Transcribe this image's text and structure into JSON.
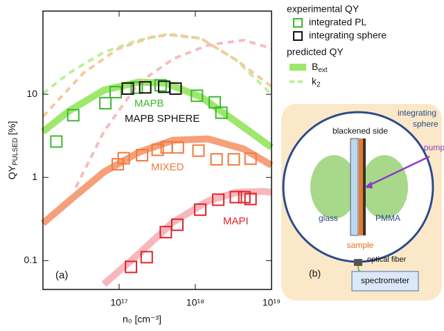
{
  "chart_data": {
    "type": "scatter",
    "log_x": true,
    "log_y": true,
    "x_label": "n₀ [cm⁻³]",
    "y_label": "QY",
    "y_label_sub": "PULSED",
    "y_label_unit": "[%]",
    "xlim": [
      1e+16,
      1e+19
    ],
    "ylim": [
      0.045,
      100
    ],
    "xticks": [
      {
        "value": 1e+17,
        "label": "10¹⁷"
      },
      {
        "value": 1e+18,
        "label": "10¹⁸"
      },
      {
        "value": 1e+19,
        "label": "10¹⁹"
      }
    ],
    "yticks": [
      0.1,
      1,
      10
    ],
    "legend_titles": [
      "experimental QY",
      "predicted QY"
    ],
    "series": [
      {
        "name": "integrated PL",
        "color": "#3cb82c",
        "x": [
          1.5e+16,
          2.5e+16,
          6.6e+16,
          9e+16,
          1.3e+17,
          1.7e+17,
          3.5e+17,
          1.05e+18,
          1.8e+18,
          2.2e+18
        ],
        "values": [
          2.7,
          5.6,
          7.8,
          10.6,
          11.7,
          12,
          12.8,
          9.6,
          8,
          6
        ]
      },
      {
        "name": "integrating sphere",
        "color": "#111111",
        "x": [
          1.3e+17,
          2.2e+17,
          3.9e+17,
          5.5e+17
        ],
        "values": [
          11.7,
          12.1,
          12.3,
          11.7
        ]
      },
      {
        "color": "#f07a3c",
        "x": [
          9.6e+16,
          1.15e+17,
          2e+17,
          3.2e+17,
          4.2e+17,
          5.9e+17,
          1.1e+18,
          1.9e+18,
          3.2e+18,
          5.3e+18
        ],
        "values": [
          1.44,
          1.7,
          1.85,
          2.15,
          2.3,
          2.3,
          2.1,
          1.65,
          1.65,
          1.68
        ]
      },
      {
        "color": "#e0202a",
        "x": [
          1.43e+17,
          2.3e+17,
          4.1e+17,
          5.8e+17,
          1.16e+18,
          2e+18,
          3.4e+18,
          4.4e+18,
          5.3e+18
        ],
        "values": [
          0.084,
          0.11,
          0.22,
          0.27,
          0.41,
          0.54,
          0.58,
          0.58,
          0.55
        ]
      }
    ],
    "curves": [
      {
        "name": "B",
        "name_sub": "ext",
        "style": "solid",
        "color": "#9de86c",
        "x": [
          1e+16,
          2.2e+16,
          6.3e+16,
          1.8e+17,
          4.1e+17,
          1.18e+18,
          3.4e+18,
          1e+19
        ],
        "values": [
          3.55,
          6.3,
          11.2,
          14,
          13.6,
          9.3,
          4.7,
          2.3
        ]
      },
      {
        "style": "solid",
        "color": "#f5a07a",
        "x": [
          1e+16,
          2.2e+16,
          6.3e+16,
          1.8e+17,
          5.1e+17,
          1.47e+18,
          4.3e+18,
          1e+19
        ],
        "values": [
          0.28,
          0.52,
          1.16,
          2,
          2.8,
          2.9,
          2.2,
          1.4
        ]
      },
      {
        "style": "solid",
        "color": "#f6b8bc",
        "x": [
          6.3e+16,
          1.8e+17,
          5.1e+17,
          1.47e+18,
          3.4e+18,
          7.9e+18,
          1e+19
        ],
        "values": [
          0.052,
          0.12,
          0.29,
          0.52,
          0.66,
          0.68,
          0.66
        ]
      },
      {
        "name": "k",
        "name_sub": "2",
        "style": "dashed",
        "color": "#bdf09a",
        "x": [
          1e+16,
          2.2e+16,
          6.3e+16,
          1.8e+17,
          4.1e+17,
          1.18e+18,
          3.4e+18,
          1e+19
        ],
        "values": [
          10.2,
          18,
          32,
          44.7,
          52,
          47,
          26,
          10
        ]
      },
      {
        "style": "dashed",
        "color": "#f7c89c",
        "x": [
          1e+16,
          3.4e+16,
          9.6e+16,
          2.7e+17,
          5.1e+17,
          1.18e+18,
          3.4e+18,
          1e+19
        ],
        "values": [
          5.4,
          18,
          35,
          49,
          52,
          47,
          26,
          12.4
        ]
      },
      {
        "style": "dashed",
        "color": "#f6bcbc",
        "x": [
          2.7e+16,
          6.3e+16,
          1.8e+17,
          5.1e+17,
          1.47e+18,
          4.3e+18,
          1e+19
        ],
        "values": [
          0.76,
          3.55,
          13.6,
          26.6,
          39,
          44.7,
          35.5
        ]
      }
    ],
    "annotations": [
      "MAPB",
      "MAPB SPHERE",
      "MIXED",
      "MAPI",
      "(a)"
    ]
  },
  "diagram": {
    "sphere_label_1": "integrating",
    "sphere_label_2": "sphere",
    "blackened": "blackened side",
    "pump": "pump",
    "glass": "glass",
    "sample": "sample",
    "pmma": "PMMA",
    "fiber": "optical fiber",
    "spectrometer": "spectrometer",
    "panel": "(b)"
  }
}
